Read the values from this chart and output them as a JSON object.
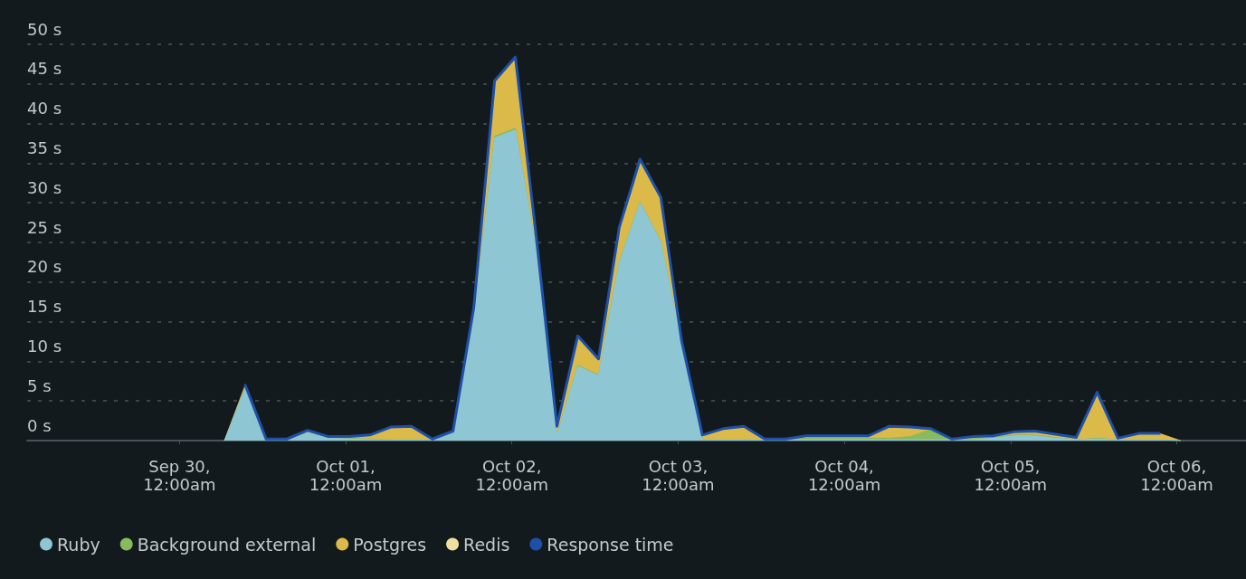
{
  "chart_data": {
    "type": "area",
    "stacked": true,
    "x": [
      "--09-30T06:30",
      "--09-30T09:30",
      "--09-30T12:30",
      "--09-30T15:30",
      "--09-30T18:30",
      "--09-30T21:30",
      "--10-01T00:30",
      "--10-01T03:30",
      "--10-01T06:30",
      "--10-01T09:30",
      "--10-01T12:30",
      "--10-01T15:30",
      "--10-01T18:30",
      "--10-01T21:30",
      "--10-02T00:30",
      "--10-02T03:30",
      "--10-02T06:30",
      "--10-02T09:30",
      "--10-02T12:30",
      "--10-02T15:30",
      "--10-02T18:30",
      "--10-02T21:30",
      "--10-03T00:30",
      "--10-03T03:30",
      "--10-03T06:30",
      "--10-03T09:30",
      "--10-03T12:30",
      "--10-03T15:30",
      "--10-03T18:30",
      "--10-03T21:30",
      "--10-04T00:30",
      "--10-04T03:30",
      "--10-04T06:30",
      "--10-04T09:30",
      "--10-04T12:30",
      "--10-04T15:30",
      "--10-04T18:30",
      "--10-04T21:30",
      "--10-05T00:30",
      "--10-05T03:30",
      "--10-05T06:30",
      "--10-05T09:30",
      "--10-05T12:30",
      "--10-05T15:30",
      "--10-05T18:30",
      "--10-05T21:30",
      "--10-06T00:30"
    ],
    "series": [
      {
        "name": "Ruby",
        "color": "#8fc6d3",
        "values": [
          0,
          6.6,
          0.1,
          0.1,
          1.0,
          0.3,
          0.2,
          0.1,
          0.1,
          0.1,
          0.1,
          1.0,
          15.4,
          38.2,
          39.2,
          24.2,
          0.6,
          9.4,
          8.2,
          22.5,
          30.0,
          25.1,
          12.3,
          0.1,
          0.1,
          0.1,
          0.1,
          0.1,
          0.1,
          0.1,
          0.1,
          0.1,
          0.1,
          0.1,
          0.1,
          0.1,
          0.1,
          0.3,
          0.6,
          0.6,
          0.3,
          0.1,
          0.2,
          0.1,
          0.1,
          0.1,
          0
        ]
      },
      {
        "name": "Background external",
        "color": "#89ba5c",
        "values": [
          0,
          0.1,
          0,
          0,
          0.1,
          0.1,
          0.1,
          0.1,
          0,
          0,
          0,
          0,
          0.1,
          0.2,
          0.2,
          0.1,
          0,
          0.1,
          0.1,
          0.1,
          0.1,
          0.1,
          0,
          0,
          0,
          0,
          0,
          0,
          0.2,
          0.2,
          0.2,
          0.2,
          0.2,
          0.4,
          1.3,
          0.1,
          0.2,
          0.1,
          0.1,
          0.1,
          0.1,
          0,
          0.1,
          0,
          0,
          0,
          0
        ]
      },
      {
        "name": "Postgres",
        "color": "#dbba4a",
        "values": [
          0,
          0.3,
          0.1,
          0.1,
          0.2,
          0.1,
          0.2,
          0.5,
          1.6,
          1.7,
          0.1,
          0.2,
          1.3,
          7.0,
          9.0,
          1.5,
          1.2,
          3.7,
          2.0,
          4.3,
          5.4,
          5.5,
          0.3,
          0.6,
          1.4,
          1.7,
          0.1,
          0.1,
          0.3,
          0.3,
          0.3,
          0.3,
          1.5,
          1.2,
          0.1,
          0,
          0.2,
          0.2,
          0.4,
          0.5,
          0.4,
          0.3,
          5.8,
          0.2,
          0.8,
          0.8,
          0
        ]
      },
      {
        "name": "Redis",
        "color": "#efe0a2",
        "values": [
          null,
          null,
          null,
          null,
          null,
          null,
          null,
          null,
          null,
          null,
          null,
          null,
          null,
          null,
          null,
          null,
          null,
          null,
          null,
          null,
          null,
          null,
          null,
          null,
          null,
          null,
          null,
          null,
          null,
          null,
          null,
          null,
          null,
          null,
          null,
          null,
          null,
          null,
          null,
          null,
          null,
          null,
          null,
          null,
          null,
          null,
          null
        ]
      },
      {
        "name": "Response time",
        "type": "line",
        "color": "#1f50a8",
        "values": [
          null,
          7.0,
          0.2,
          0.2,
          1.3,
          0.5,
          0.5,
          0.7,
          1.7,
          1.8,
          0.2,
          1.2,
          16.8,
          45.4,
          48.4,
          25.8,
          1.8,
          13.2,
          10.3,
          26.9,
          35.5,
          30.7,
          12.6,
          0.7,
          1.5,
          1.8,
          0.2,
          0.2,
          0.6,
          0.6,
          0.6,
          0.6,
          1.8,
          1.7,
          1.5,
          0.2,
          0.5,
          0.6,
          1.1,
          1.2,
          0.8,
          0.4,
          6.1,
          0.3,
          0.9,
          0.9,
          null
        ]
      }
    ],
    "xlim": [
      "--09-29T02:00",
      "--10-06T10:00"
    ],
    "xticks": [
      {
        "value": "--09-30T00:00",
        "label": "Sep 30, 12:00am"
      },
      {
        "value": "--10-01T00:00",
        "label": "Oct 01, 12:00am"
      },
      {
        "value": "--10-02T00:00",
        "label": "Oct 02, 12:00am"
      },
      {
        "value": "--10-03T00:00",
        "label": "Oct 03, 12:00am"
      },
      {
        "value": "--10-04T00:00",
        "label": "Oct 04, 12:00am"
      },
      {
        "value": "--10-05T00:00",
        "label": "Oct 05, 12:00am"
      },
      {
        "value": "--10-06T00:00",
        "label": "Oct 06, 12:00am"
      }
    ],
    "ylim": [
      0,
      50
    ],
    "yticks": [
      {
        "value": 0,
        "label": "0 s"
      },
      {
        "value": 5,
        "label": "5 s"
      },
      {
        "value": 10,
        "label": "10 s"
      },
      {
        "value": 15,
        "label": "15 s"
      },
      {
        "value": 20,
        "label": "20 s"
      },
      {
        "value": 25,
        "label": "25 s"
      },
      {
        "value": 30,
        "label": "30 s"
      },
      {
        "value": 35,
        "label": "35 s"
      },
      {
        "value": 40,
        "label": "40 s"
      },
      {
        "value": 45,
        "label": "45 s"
      },
      {
        "value": 50,
        "label": "50 s"
      }
    ],
    "grid": "y",
    "legend": "bottom left",
    "marker": "none"
  }
}
